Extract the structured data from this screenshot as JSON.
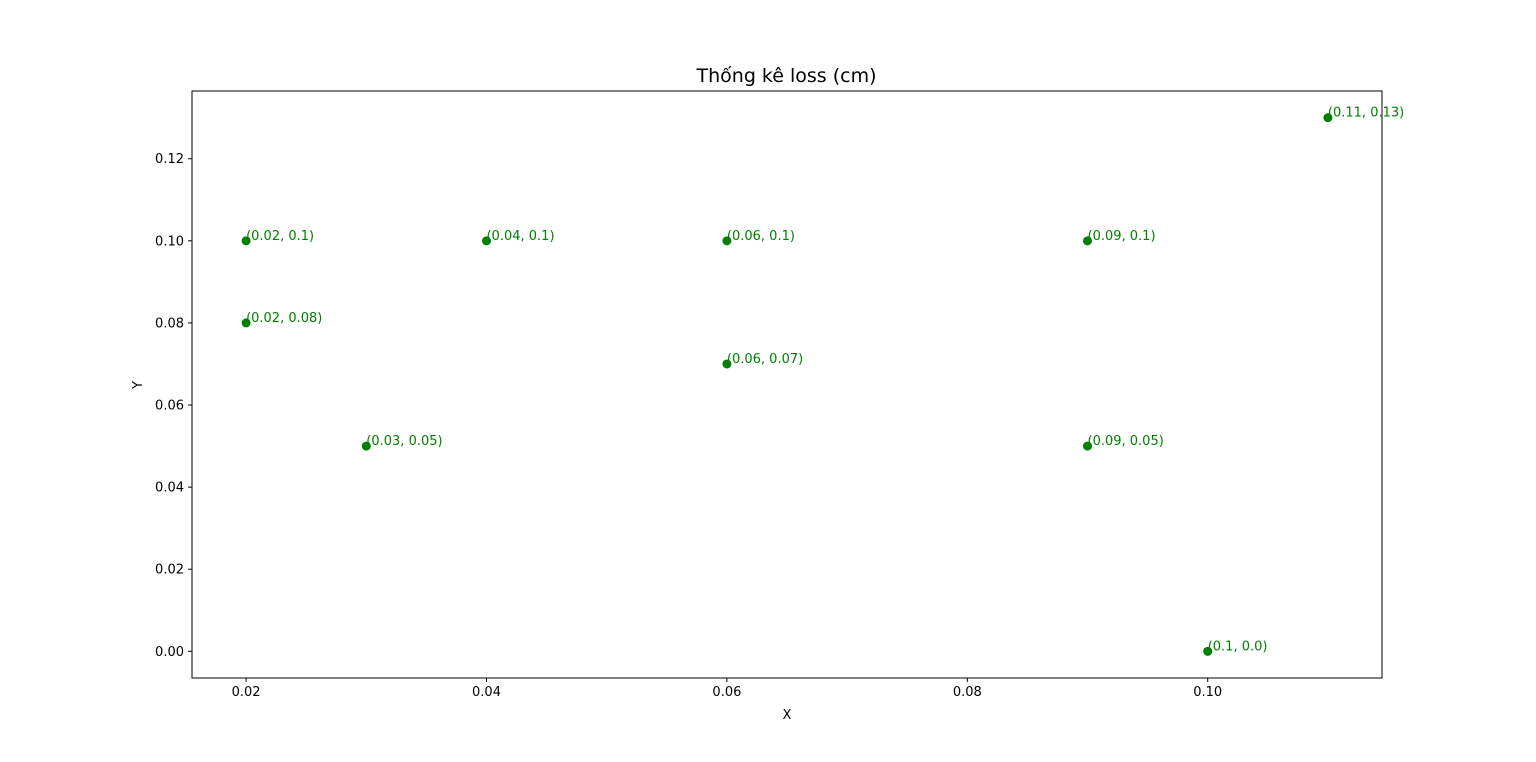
{
  "chart_data": {
    "type": "scatter",
    "title": "Thống kê loss (cm)",
    "xlabel": "X",
    "ylabel": "Y",
    "xlim": [
      0.0155,
      0.1145
    ],
    "ylim": [
      -0.0065,
      0.1365
    ],
    "xticks": [
      {
        "value": 0.02,
        "label": "0.02"
      },
      {
        "value": 0.04,
        "label": "0.04"
      },
      {
        "value": 0.06,
        "label": "0.06"
      },
      {
        "value": 0.08,
        "label": "0.08"
      },
      {
        "value": 0.1,
        "label": "0.10"
      }
    ],
    "yticks": [
      {
        "value": 0.0,
        "label": "0.00"
      },
      {
        "value": 0.02,
        "label": "0.02"
      },
      {
        "value": 0.04,
        "label": "0.04"
      },
      {
        "value": 0.06,
        "label": "0.06"
      },
      {
        "value": 0.08,
        "label": "0.08"
      },
      {
        "value": 0.1,
        "label": "0.10"
      },
      {
        "value": 0.12,
        "label": "0.12"
      }
    ],
    "grid": false,
    "marker_color": "#008000",
    "points": [
      {
        "x": 0.02,
        "y": 0.1,
        "label": "(0.02, 0.1)"
      },
      {
        "x": 0.02,
        "y": 0.08,
        "label": "(0.02, 0.08)"
      },
      {
        "x": 0.03,
        "y": 0.05,
        "label": "(0.03, 0.05)"
      },
      {
        "x": 0.04,
        "y": 0.1,
        "label": "(0.04, 0.1)"
      },
      {
        "x": 0.06,
        "y": 0.1,
        "label": "(0.06, 0.1)"
      },
      {
        "x": 0.06,
        "y": 0.07,
        "label": "(0.06, 0.07)"
      },
      {
        "x": 0.09,
        "y": 0.1,
        "label": "(0.09, 0.1)"
      },
      {
        "x": 0.09,
        "y": 0.05,
        "label": "(0.09, 0.05)"
      },
      {
        "x": 0.1,
        "y": 0.0,
        "label": "(0.1, 0.0)"
      },
      {
        "x": 0.11,
        "y": 0.13,
        "label": "(0.11, 0.13)"
      }
    ]
  }
}
